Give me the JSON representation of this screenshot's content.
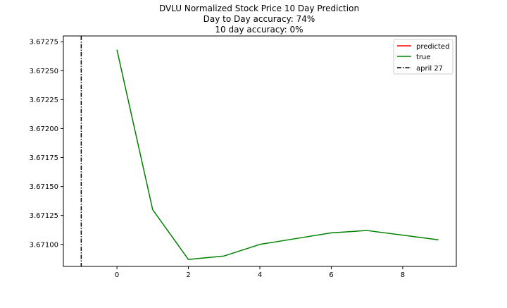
{
  "chart_data": {
    "type": "line",
    "title_lines": [
      "DVLU Normalized Stock Price 10 Day Prediction",
      "Day to Day accuracy: 74%",
      "10 day accuracy: 0%"
    ],
    "xlabel": "",
    "ylabel": "",
    "xlim": [
      -1.5,
      9.5
    ],
    "ylim": [
      3.67081,
      3.6728
    ],
    "x_ticks": [
      0,
      2,
      4,
      6,
      8
    ],
    "x_tick_labels": [
      "0",
      "2",
      "4",
      "6",
      "8"
    ],
    "y_ticks": [
      3.671,
      3.67125,
      3.6715,
      3.67175,
      3.672,
      3.67225,
      3.6725,
      3.67275
    ],
    "y_tick_labels": [
      "3.67100",
      "3.67125",
      "3.67150",
      "3.67175",
      "3.67200",
      "3.67225",
      "3.67250",
      "3.67275"
    ],
    "grid": false,
    "legend_position": "top-right",
    "series": [
      {
        "name": "predicted",
        "color": "#ff0000",
        "style": "solid",
        "x": [],
        "y": []
      },
      {
        "name": "true",
        "color": "#008000",
        "style": "solid",
        "x": [
          0,
          1,
          2,
          3,
          4,
          5,
          6,
          7,
          8,
          9
        ],
        "y": [
          3.67268,
          3.6713,
          3.67087,
          3.6709,
          3.671,
          3.67105,
          3.6711,
          3.67112,
          3.67108,
          3.67104
        ]
      }
    ],
    "vlines": [
      {
        "name": "april 27",
        "x": -1,
        "color": "#000000",
        "style": "dashdot"
      }
    ]
  }
}
